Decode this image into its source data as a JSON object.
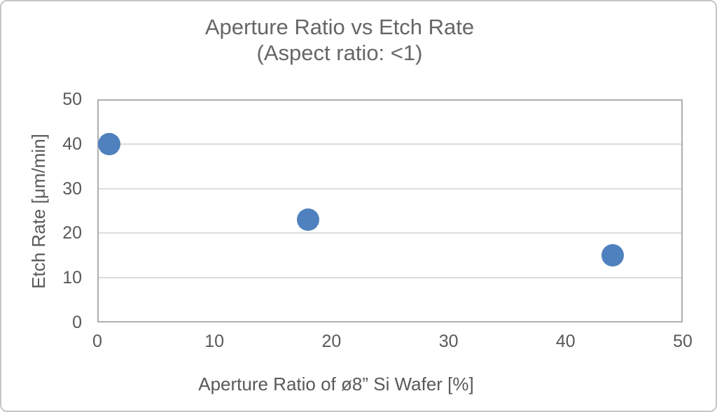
{
  "figure": {
    "background": "#ffffff",
    "border_color": "#c6c6c6"
  },
  "chart_data": {
    "type": "scatter",
    "title": "Aperture Ratio vs Etch Rate",
    "subtitle": "(Aspect ratio: <1)",
    "xlabel": "Aperture Ratio of ø8” Si Wafer [%]",
    "ylabel": "Etch Rate [μm/min]",
    "xlim": [
      0,
      50
    ],
    "ylim": [
      0,
      50
    ],
    "xticks": [
      0,
      10,
      20,
      30,
      40,
      50
    ],
    "yticks": [
      0,
      10,
      20,
      30,
      40,
      50
    ],
    "points": [
      {
        "x": 1,
        "y": 40
      },
      {
        "x": 18,
        "y": 23
      },
      {
        "x": 44,
        "y": 15
      }
    ],
    "grid": "horizontal",
    "legend": "none",
    "colors": {
      "marker": "#4e81bd",
      "gridline": "#dcdcdc",
      "plot_border": "#aeaeae",
      "tick_text": "#595959",
      "title_text": "#666666"
    }
  }
}
